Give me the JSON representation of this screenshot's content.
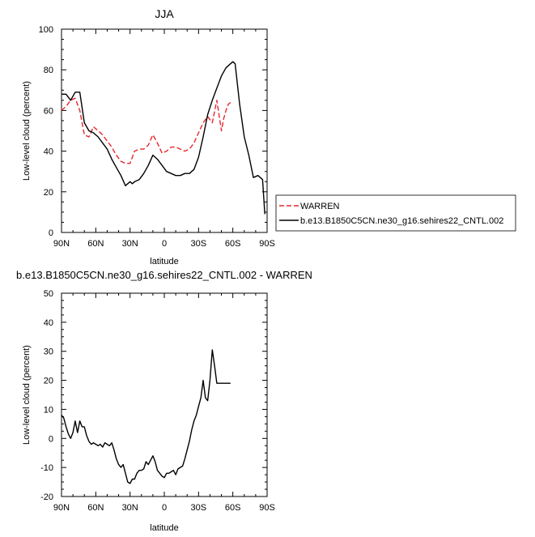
{
  "chart_data": [
    {
      "type": "line",
      "title": "JJA",
      "xlabel": "latitude",
      "ylabel": "Low-level cloud (percent)",
      "xlim": [
        90,
        -90
      ],
      "ylim": [
        0,
        100
      ],
      "x_ticks": [
        90,
        60,
        30,
        0,
        -30,
        -60,
        -90
      ],
      "x_tick_labels": [
        "90N",
        "60N",
        "30N",
        "0",
        "30S",
        "60S",
        "90S"
      ],
      "y_ticks": [
        0,
        20,
        40,
        60,
        80,
        100
      ],
      "y_tick_labels": [
        "0",
        "20",
        "40",
        "60",
        "80",
        "100"
      ],
      "legend_position": "right",
      "series": [
        {
          "name": "WARREN",
          "color": "#e8262a",
          "dash": "dashed",
          "x": [
            90,
            86,
            82,
            78,
            74,
            70,
            66,
            62,
            58,
            54,
            50,
            46,
            42,
            38,
            34,
            30,
            26,
            22,
            18,
            14,
            10,
            6,
            2,
            -2,
            -6,
            -10,
            -14,
            -18,
            -22,
            -26,
            -30,
            -34,
            -38,
            -42,
            -46,
            -50,
            -52,
            -54,
            -56,
            -58
          ],
          "y": [
            60,
            62,
            65,
            66,
            60,
            48,
            47,
            52,
            50,
            48,
            45,
            42,
            38,
            35,
            34,
            34,
            40,
            41,
            41,
            43,
            48,
            44,
            39,
            40,
            42,
            42,
            41,
            40,
            41,
            44,
            49,
            54,
            57,
            54,
            65,
            50,
            56,
            60,
            63,
            64
          ]
        },
        {
          "name": "b.e13.B1850C5CN.ne30_g16.sehires22_CNTL.002",
          "color": "#000000",
          "dash": "solid",
          "x": [
            90,
            86,
            82,
            78,
            74,
            70,
            66,
            62,
            58,
            54,
            50,
            46,
            42,
            38,
            34,
            30,
            28,
            26,
            22,
            18,
            14,
            10,
            6,
            2,
            -2,
            -6,
            -10,
            -14,
            -18,
            -22,
            -26,
            -30,
            -34,
            -38,
            -42,
            -46,
            -50,
            -54,
            -58,
            -60,
            -62,
            -66,
            -70,
            -74,
            -78,
            -82,
            -86,
            -88
          ],
          "y": [
            68,
            68,
            65,
            69,
            69,
            54,
            50,
            49,
            47,
            44,
            41,
            36,
            32,
            28,
            23,
            25,
            24,
            25,
            26,
            29,
            33,
            38,
            36,
            33,
            30,
            29,
            28,
            28,
            29,
            29,
            31,
            37,
            47,
            58,
            65,
            71,
            77,
            81,
            83,
            84,
            83,
            63,
            47,
            38,
            27,
            28,
            26,
            9
          ]
        }
      ]
    },
    {
      "type": "line",
      "title": "b.e13.B1850C5CN.ne30_g16.sehires22_CNTL.002 - WARREN",
      "xlabel": "latitude",
      "ylabel": "Low-level cloud (percent)",
      "xlim": [
        90,
        -90
      ],
      "ylim": [
        -20,
        50
      ],
      "x_ticks": [
        90,
        60,
        30,
        0,
        -30,
        -60,
        -90
      ],
      "x_tick_labels": [
        "90N",
        "60N",
        "30N",
        "0",
        "30S",
        "60S",
        "90S"
      ],
      "y_ticks": [
        -20,
        -10,
        0,
        10,
        20,
        30,
        40,
        50
      ],
      "y_tick_labels": [
        "-20",
        "-10",
        "0",
        "10",
        "20",
        "30",
        "40",
        "50"
      ],
      "series": [
        {
          "color": "#000000",
          "dash": "solid",
          "x": [
            90,
            88,
            86,
            84,
            82,
            80,
            78,
            76,
            74,
            72,
            70,
            68,
            66,
            64,
            62,
            60,
            58,
            56,
            54,
            52,
            50,
            48,
            46,
            44,
            42,
            40,
            38,
            36,
            34,
            32,
            30,
            28,
            26,
            24,
            22,
            20,
            18,
            16,
            14,
            12,
            10,
            8,
            6,
            4,
            2,
            0,
            -2,
            -4,
            -6,
            -8,
            -10,
            -12,
            -14,
            -16,
            -18,
            -20,
            -22,
            -24,
            -26,
            -28,
            -30,
            -32,
            -34,
            -36,
            -38,
            -40,
            -42,
            -44,
            -46,
            -48,
            -50,
            -52,
            -54,
            -56,
            -58
          ],
          "y": [
            8,
            7,
            4,
            1.5,
            0,
            2,
            6,
            2,
            6,
            4,
            4,
            1,
            -1,
            -2,
            -1.5,
            -2,
            -2.5,
            -2,
            -3,
            -1.5,
            -2,
            -2.5,
            -1.5,
            -4,
            -7,
            -9,
            -10,
            -9,
            -12,
            -15,
            -15.5,
            -14,
            -14,
            -12,
            -11,
            -11,
            -10.5,
            -8,
            -9,
            -7.5,
            -6,
            -8,
            -11,
            -12,
            -13,
            -13.5,
            -12,
            -12,
            -11.5,
            -11,
            -12.5,
            -10.5,
            -10,
            -9.5,
            -7,
            -4,
            -1,
            3,
            6,
            8,
            11,
            14,
            20,
            14,
            13,
            20,
            30.5,
            25,
            19,
            19,
            19,
            19,
            19,
            19,
            19
          ]
        }
      ]
    }
  ]
}
